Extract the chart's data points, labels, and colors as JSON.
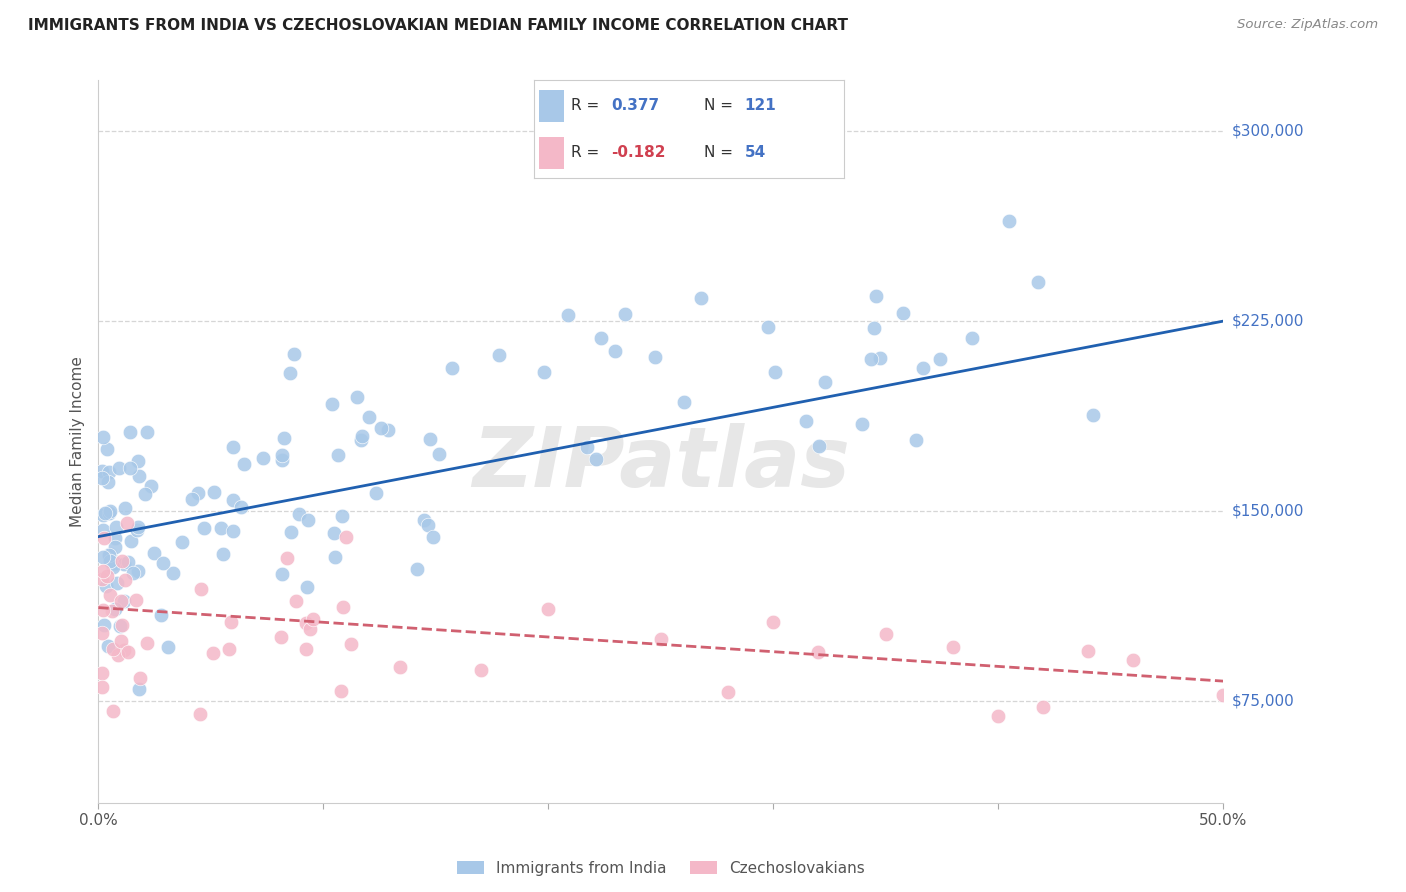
{
  "title": "IMMIGRANTS FROM INDIA VS CZECHOSLOVAKIAN MEDIAN FAMILY INCOME CORRELATION CHART",
  "source": "Source: ZipAtlas.com",
  "ylabel": "Median Family Income",
  "right_yticks": [
    75000,
    150000,
    225000,
    300000
  ],
  "right_ytick_labels": [
    "$75,000",
    "$150,000",
    "$225,000",
    "$300,000"
  ],
  "xlim": [
    0.0,
    0.5
  ],
  "ylim": [
    35000,
    320000
  ],
  "india_color": "#a8c8e8",
  "czech_color": "#f4b8c8",
  "india_line_color": "#2060b0",
  "czech_line_color": "#d06070",
  "watermark": "ZIPatlas",
  "background_color": "#ffffff",
  "grid_color": "#cccccc",
  "india_line_x0": 0.0,
  "india_line_y0": 140000,
  "india_line_x1": 0.5,
  "india_line_y1": 225000,
  "czech_line_x0": 0.0,
  "czech_line_y0": 112000,
  "czech_line_x1": 0.5,
  "czech_line_y1": 83000
}
